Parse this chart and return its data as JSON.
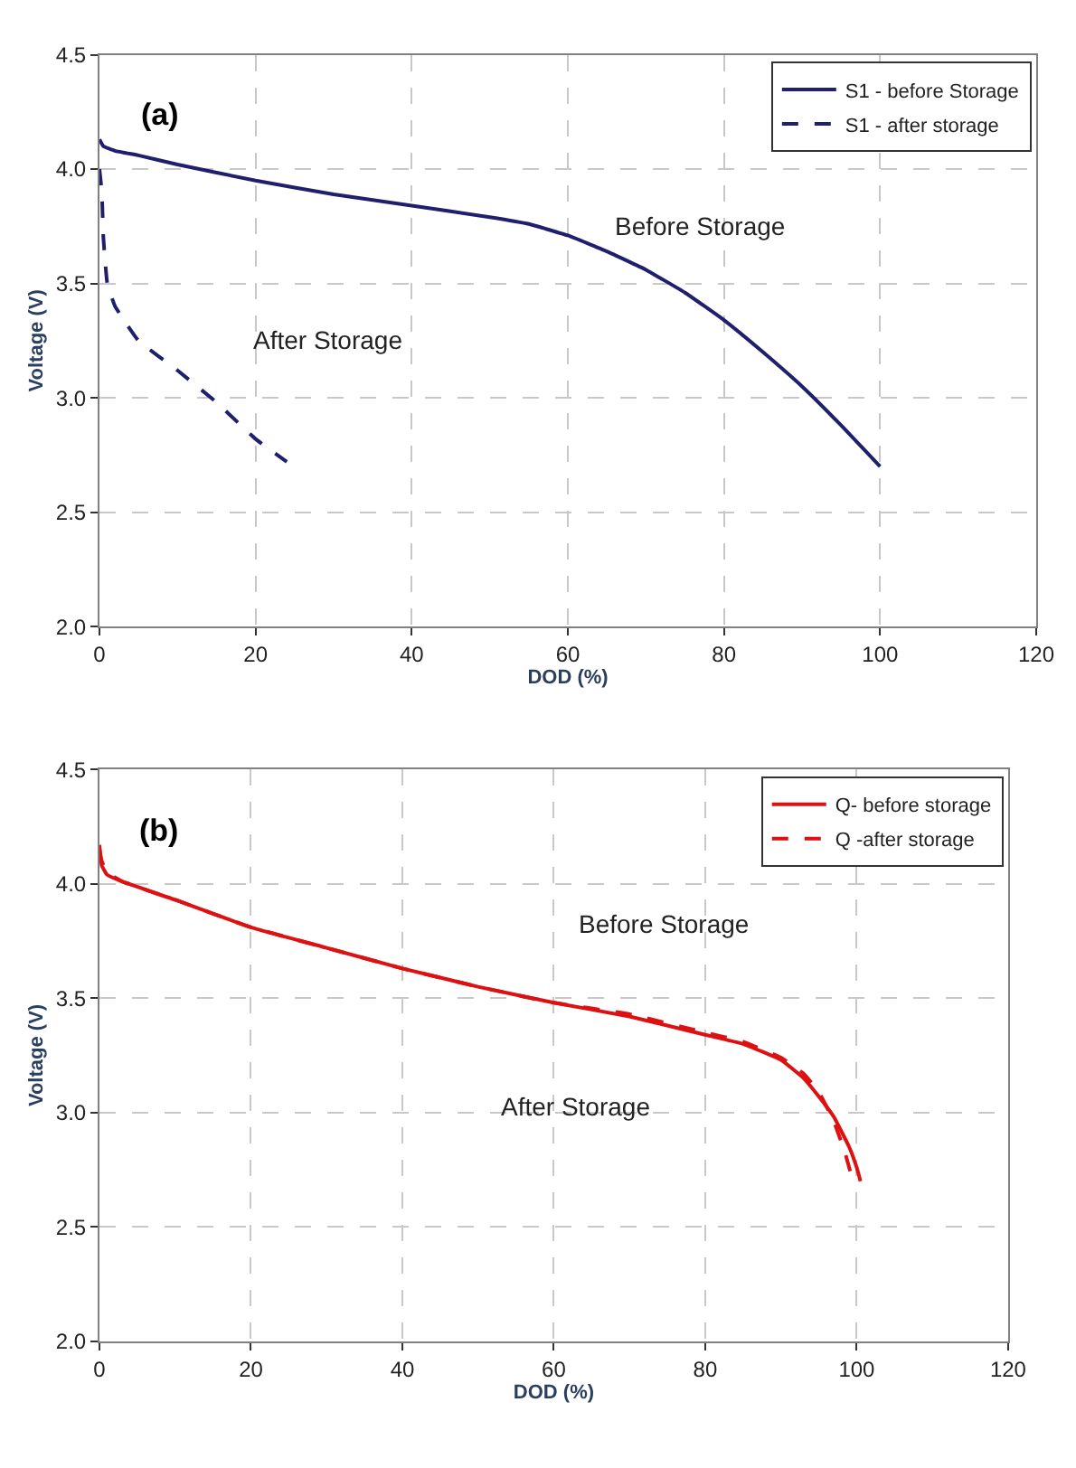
{
  "chart_data": [
    {
      "type": "line",
      "title": "(a)",
      "xlabel": "DOD (%)",
      "ylabel": "Voltage (V)",
      "xlim": [
        0,
        120
      ],
      "xticks": [
        0,
        20,
        40,
        60,
        80,
        100,
        120
      ],
      "ylim": [
        2.0,
        4.5
      ],
      "yticks": [
        {
          "value": 2.0,
          "label": "2.0"
        },
        {
          "value": 2.5,
          "label": "2.5"
        },
        {
          "value": 3.0,
          "label": "3.0"
        },
        {
          "value": 3.5,
          "label": "3.5"
        },
        {
          "value": 4.0,
          "label": "4.0"
        },
        {
          "value": 4.5,
          "label": "4.5"
        }
      ],
      "grid": true,
      "legend": "top right",
      "annotations": [
        "Before Storage",
        "After Storage"
      ],
      "series": [
        {
          "name": "S1 - before Storage",
          "color": "#1f1f6e",
          "line_style": "solid",
          "x": [
            0,
            0.5,
            2,
            5,
            10,
            20,
            30,
            40,
            50,
            55,
            60,
            65,
            70,
            75,
            80,
            85,
            90,
            95,
            100
          ],
          "values": [
            4.13,
            4.1,
            4.08,
            4.06,
            4.02,
            3.95,
            3.89,
            3.84,
            3.79,
            3.76,
            3.71,
            3.64,
            3.56,
            3.46,
            3.34,
            3.2,
            3.05,
            2.88,
            2.7
          ]
        },
        {
          "name": "S1 - after storage",
          "color": "#1f1f6e",
          "line_style": "dashed",
          "x": [
            0,
            0.3,
            0.5,
            1,
            2,
            5,
            10,
            15,
            20,
            24
          ],
          "values": [
            4.0,
            3.9,
            3.7,
            3.5,
            3.4,
            3.25,
            3.12,
            2.98,
            2.82,
            2.72
          ]
        }
      ]
    },
    {
      "type": "line",
      "title": "(b)",
      "xlabel": "DOD (%)",
      "ylabel": "Voltage (V)",
      "xlim": [
        0,
        120
      ],
      "xticks": [
        0,
        20,
        40,
        60,
        80,
        100,
        120
      ],
      "ylim": [
        2.0,
        4.5
      ],
      "yticks": [
        {
          "value": 2.0,
          "label": "2.0"
        },
        {
          "value": 2.5,
          "label": "2.5"
        },
        {
          "value": 3.0,
          "label": "3.0"
        },
        {
          "value": 3.5,
          "label": "3.5"
        },
        {
          "value": 4.0,
          "label": "4.0"
        },
        {
          "value": 4.5,
          "label": "4.5"
        }
      ],
      "grid": true,
      "legend": "top right",
      "annotations": [
        "Before Storage",
        "After Storage"
      ],
      "series": [
        {
          "name": "Q- before storage",
          "color": "#dd1111",
          "line_style": "solid",
          "x": [
            0,
            0.3,
            1,
            3,
            10,
            20,
            30,
            40,
            50,
            60,
            70,
            80,
            85,
            90,
            93,
            95,
            97,
            99,
            100,
            100.5
          ],
          "values": [
            4.17,
            4.08,
            4.04,
            4.01,
            3.93,
            3.81,
            3.72,
            3.63,
            3.55,
            3.48,
            3.42,
            3.34,
            3.3,
            3.23,
            3.15,
            3.07,
            2.98,
            2.85,
            2.76,
            2.7
          ]
        },
        {
          "name": "Q -after storage",
          "color": "#dd1111",
          "line_style": "dashed",
          "x": [
            0,
            0.3,
            1,
            3,
            10,
            20,
            30,
            40,
            50,
            60,
            70,
            80,
            85,
            90,
            93,
            95,
            97,
            98.5,
            99.5
          ],
          "values": [
            4.15,
            4.1,
            4.05,
            4.01,
            3.93,
            3.81,
            3.72,
            3.63,
            3.55,
            3.48,
            3.43,
            3.35,
            3.31,
            3.24,
            3.17,
            3.09,
            2.96,
            2.82,
            2.7
          ]
        }
      ]
    }
  ]
}
